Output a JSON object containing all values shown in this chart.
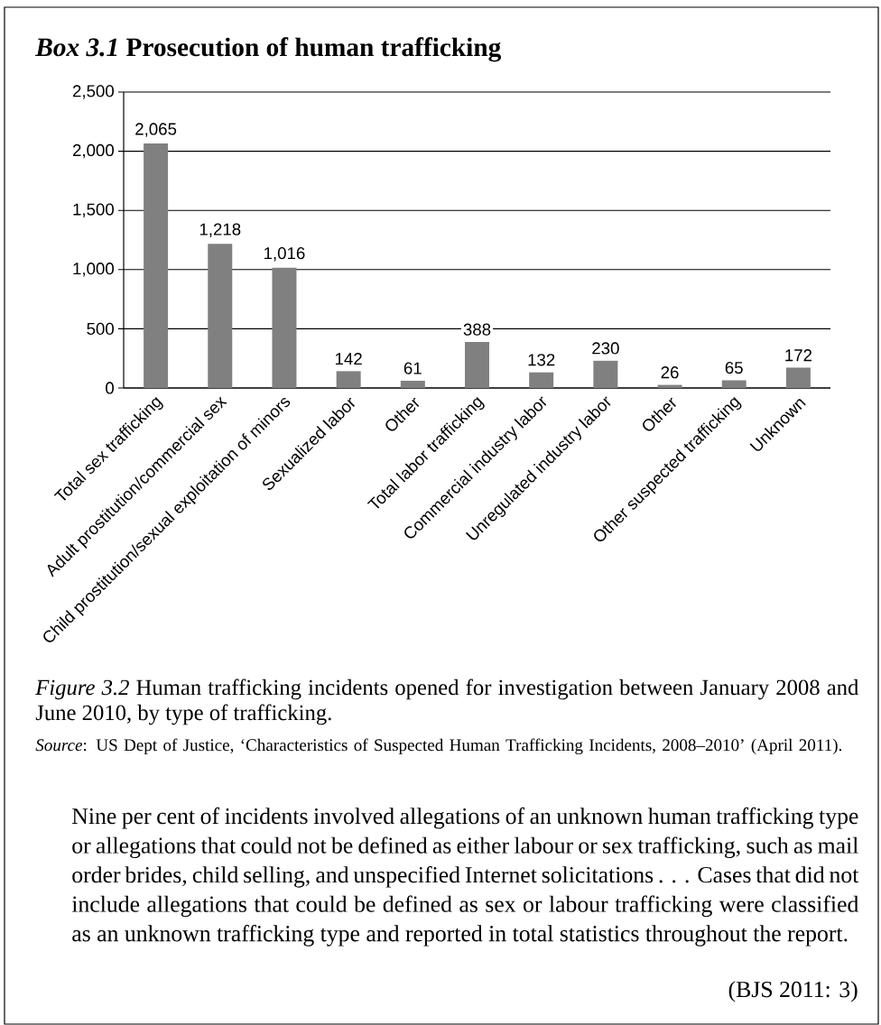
{
  "chart_data": {
    "type": "bar",
    "title": "*Box 3.1* Prosecution of human trafficking",
    "categories": [
      "Total sex trafficking",
      "Adult prostitution/commercial sex",
      "Child prostitution/sexual exploitation of minors",
      "Sexualized labor",
      "Other",
      "Total labor trafficking",
      "Commercial industry labor",
      "Unregulated industry labor",
      "Other",
      "Other suspected trafficking",
      "Unknown"
    ],
    "values": [
      2065,
      1218,
      1016,
      142,
      61,
      388,
      132,
      230,
      26,
      65,
      172
    ],
    "color": "#808080",
    "ylim": [
      0,
      2500
    ],
    "yticks": [
      0,
      500,
      {
        "value": 1000,
        "label": "1,000"
      },
      {
        "value": 1500,
        "label": "1,500"
      },
      {
        "value": 2000,
        "label": "2,000"
      },
      {
        "value": 2500,
        "label": "2,500"
      }
    ],
    "grid": "y",
    "value_labels": [
      "2,065",
      "1,218",
      "1,016",
      "142",
      "61",
      "388",
      "132",
      "230",
      "26",
      "65",
      "172"
    ],
    "annotations": [
      "*Figure 3.2* Human trafficking incidents opened for investigation between January 2008 and June 2010, by type of trafficking.",
      "*Source*: US Dept of Justice, ‘Characteristics of Suspected Human Trafficking Incidents, 2008–2010’ (April 2011).",
      "Nine per cent of incidents involved allegations of an unknown human trafficking type or allegations that could not be defined as either labour or sex trafficking, such as mail order brides, child selling, and unspecified Internet solicitations . . . Cases that did not include allegations that could be defined as sex or labour trafficking were classified as an unknown trafficking type and reported in total statistics throughout the report.",
      "(BJS 2011: 3)"
    ]
  }
}
